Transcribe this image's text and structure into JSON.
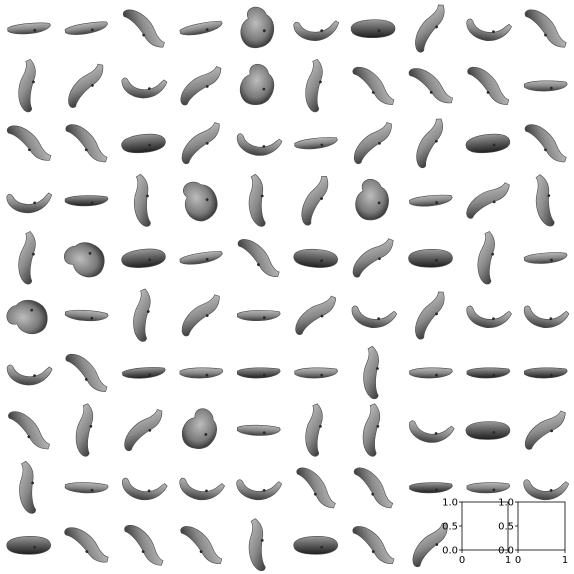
{
  "chart_data": {
    "type": "image-grid",
    "title": "",
    "rows": 10,
    "cols": 10,
    "image_count": 98,
    "image_subject": "banana",
    "colormap": "gray",
    "background": "#ffffff",
    "cells": [
      {
        "shape": "horizontal",
        "angle": -4
      },
      {
        "shape": "horizontal",
        "angle": -8
      },
      {
        "shape": "curve-up",
        "angle": 70
      },
      {
        "shape": "horizontal",
        "angle": -10
      },
      {
        "shape": "blob",
        "angle": 0
      },
      {
        "shape": "curve-down",
        "angle": 0
      },
      {
        "shape": "oval",
        "angle": 0
      },
      {
        "shape": "curve-up",
        "angle": -35
      },
      {
        "shape": "curve-down",
        "angle": 10
      },
      {
        "shape": "curve-up",
        "angle": 70
      },
      {
        "shape": "curve-up",
        "angle": -60
      },
      {
        "shape": "curve-up",
        "angle": -25
      },
      {
        "shape": "curve-down",
        "angle": 5
      },
      {
        "shape": "curve-up",
        "angle": -15
      },
      {
        "shape": "blob",
        "angle": 10
      },
      {
        "shape": "curve-up",
        "angle": -60
      },
      {
        "shape": "curve-up",
        "angle": 70
      },
      {
        "shape": "curve-up",
        "angle": 65
      },
      {
        "shape": "curve-up",
        "angle": 70
      },
      {
        "shape": "horizontal",
        "angle": 0
      },
      {
        "shape": "curve-up",
        "angle": 65
      },
      {
        "shape": "curve-up",
        "angle": 70
      },
      {
        "shape": "oval",
        "angle": -5
      },
      {
        "shape": "curve-up",
        "angle": -20
      },
      {
        "shape": "curve-down",
        "angle": 10
      },
      {
        "shape": "horizontal",
        "angle": -5
      },
      {
        "shape": "curve-up",
        "angle": -20
      },
      {
        "shape": "curve-up",
        "angle": -40
      },
      {
        "shape": "oval",
        "angle": -5
      },
      {
        "shape": "curve-up",
        "angle": 70
      },
      {
        "shape": "curve-down",
        "angle": 0
      },
      {
        "shape": "horizontal-dark",
        "angle": 0
      },
      {
        "shape": "curve-up",
        "angle": -70
      },
      {
        "shape": "blob",
        "angle": -30
      },
      {
        "shape": "curve-up",
        "angle": -70
      },
      {
        "shape": "curve-up",
        "angle": -40
      },
      {
        "shape": "blob",
        "angle": 0
      },
      {
        "shape": "horizontal",
        "angle": -4
      },
      {
        "shape": "curve-up",
        "angle": -10
      },
      {
        "shape": "curve-up",
        "angle": -75
      },
      {
        "shape": "curve-up",
        "angle": -60
      },
      {
        "shape": "blob",
        "angle": -70
      },
      {
        "shape": "oval",
        "angle": -5
      },
      {
        "shape": "horizontal",
        "angle": -8
      },
      {
        "shape": "curve-up",
        "angle": 70
      },
      {
        "shape": "oval",
        "angle": 5
      },
      {
        "shape": "curve-up",
        "angle": -15
      },
      {
        "shape": "oval",
        "angle": 0
      },
      {
        "shape": "curve-up",
        "angle": -60
      },
      {
        "shape": "horizontal",
        "angle": -3
      },
      {
        "shape": "blob",
        "angle": -80
      },
      {
        "shape": "horizontal",
        "angle": 5
      },
      {
        "shape": "curve-up",
        "angle": -60
      },
      {
        "shape": "curve-up",
        "angle": -20
      },
      {
        "shape": "horizontal",
        "angle": 0
      },
      {
        "shape": "curve-up",
        "angle": -15
      },
      {
        "shape": "curve-down",
        "angle": 10
      },
      {
        "shape": "curve-up",
        "angle": -35
      },
      {
        "shape": "curve-down",
        "angle": 10
      },
      {
        "shape": "curve-down",
        "angle": 10
      },
      {
        "shape": "curve-down",
        "angle": 5
      },
      {
        "shape": "curve-up",
        "angle": 70
      },
      {
        "shape": "horizontal-dark",
        "angle": -3
      },
      {
        "shape": "horizontal",
        "angle": 0
      },
      {
        "shape": "horizontal-dark",
        "angle": 0
      },
      {
        "shape": "horizontal",
        "angle": 0
      },
      {
        "shape": "curve-up",
        "angle": -65
      },
      {
        "shape": "horizontal",
        "angle": 0
      },
      {
        "shape": "horizontal-dark",
        "angle": 0
      },
      {
        "shape": "horizontal-dark",
        "angle": 0
      },
      {
        "shape": "curve-up",
        "angle": 70
      },
      {
        "shape": "curve-up",
        "angle": -60
      },
      {
        "shape": "curve-up",
        "angle": -20
      },
      {
        "shape": "blob",
        "angle": 20
      },
      {
        "shape": "horizontal",
        "angle": 3
      },
      {
        "shape": "curve-up",
        "angle": -60
      },
      {
        "shape": "curve-up",
        "angle": -60
      },
      {
        "shape": "curve-down",
        "angle": 10
      },
      {
        "shape": "oval",
        "angle": 0
      },
      {
        "shape": "curve-up",
        "angle": -15
      },
      {
        "shape": "curve-up",
        "angle": -70
      },
      {
        "shape": "horizontal",
        "angle": 3
      },
      {
        "shape": "curve-down",
        "angle": 10
      },
      {
        "shape": "curve-down",
        "angle": 10
      },
      {
        "shape": "curve-down",
        "angle": 5
      },
      {
        "shape": "curve-up",
        "angle": 75
      },
      {
        "shape": "curve-up",
        "angle": 75
      },
      {
        "shape": "horizontal-dark",
        "angle": 0
      },
      {
        "shape": "horizontal",
        "angle": 0
      },
      {
        "shape": "curve-down",
        "angle": 5
      },
      {
        "shape": "oval",
        "angle": 0
      },
      {
        "shape": "curve-up",
        "angle": 65
      },
      {
        "shape": "curve-up",
        "angle": 75
      },
      {
        "shape": "curve-up",
        "angle": 70
      },
      {
        "shape": "curve-up",
        "angle": -70
      },
      {
        "shape": "oval",
        "angle": 0
      },
      {
        "shape": "curve-up",
        "angle": 70
      },
      {
        "shape": "curve-up",
        "angle": -25
      }
    ],
    "empty_axes": [
      {
        "xlim": [
          0,
          1
        ],
        "ylim": [
          0,
          1
        ],
        "xticks": [
          "0",
          "1"
        ],
        "yticks": [
          "0.0",
          "0.5",
          "1.0"
        ]
      },
      {
        "xlim": [
          0,
          1
        ],
        "ylim": [
          0,
          1
        ],
        "xticks": [
          "0",
          "1"
        ],
        "yticks": [
          "0.0",
          "0.5",
          "1.0"
        ]
      }
    ]
  }
}
